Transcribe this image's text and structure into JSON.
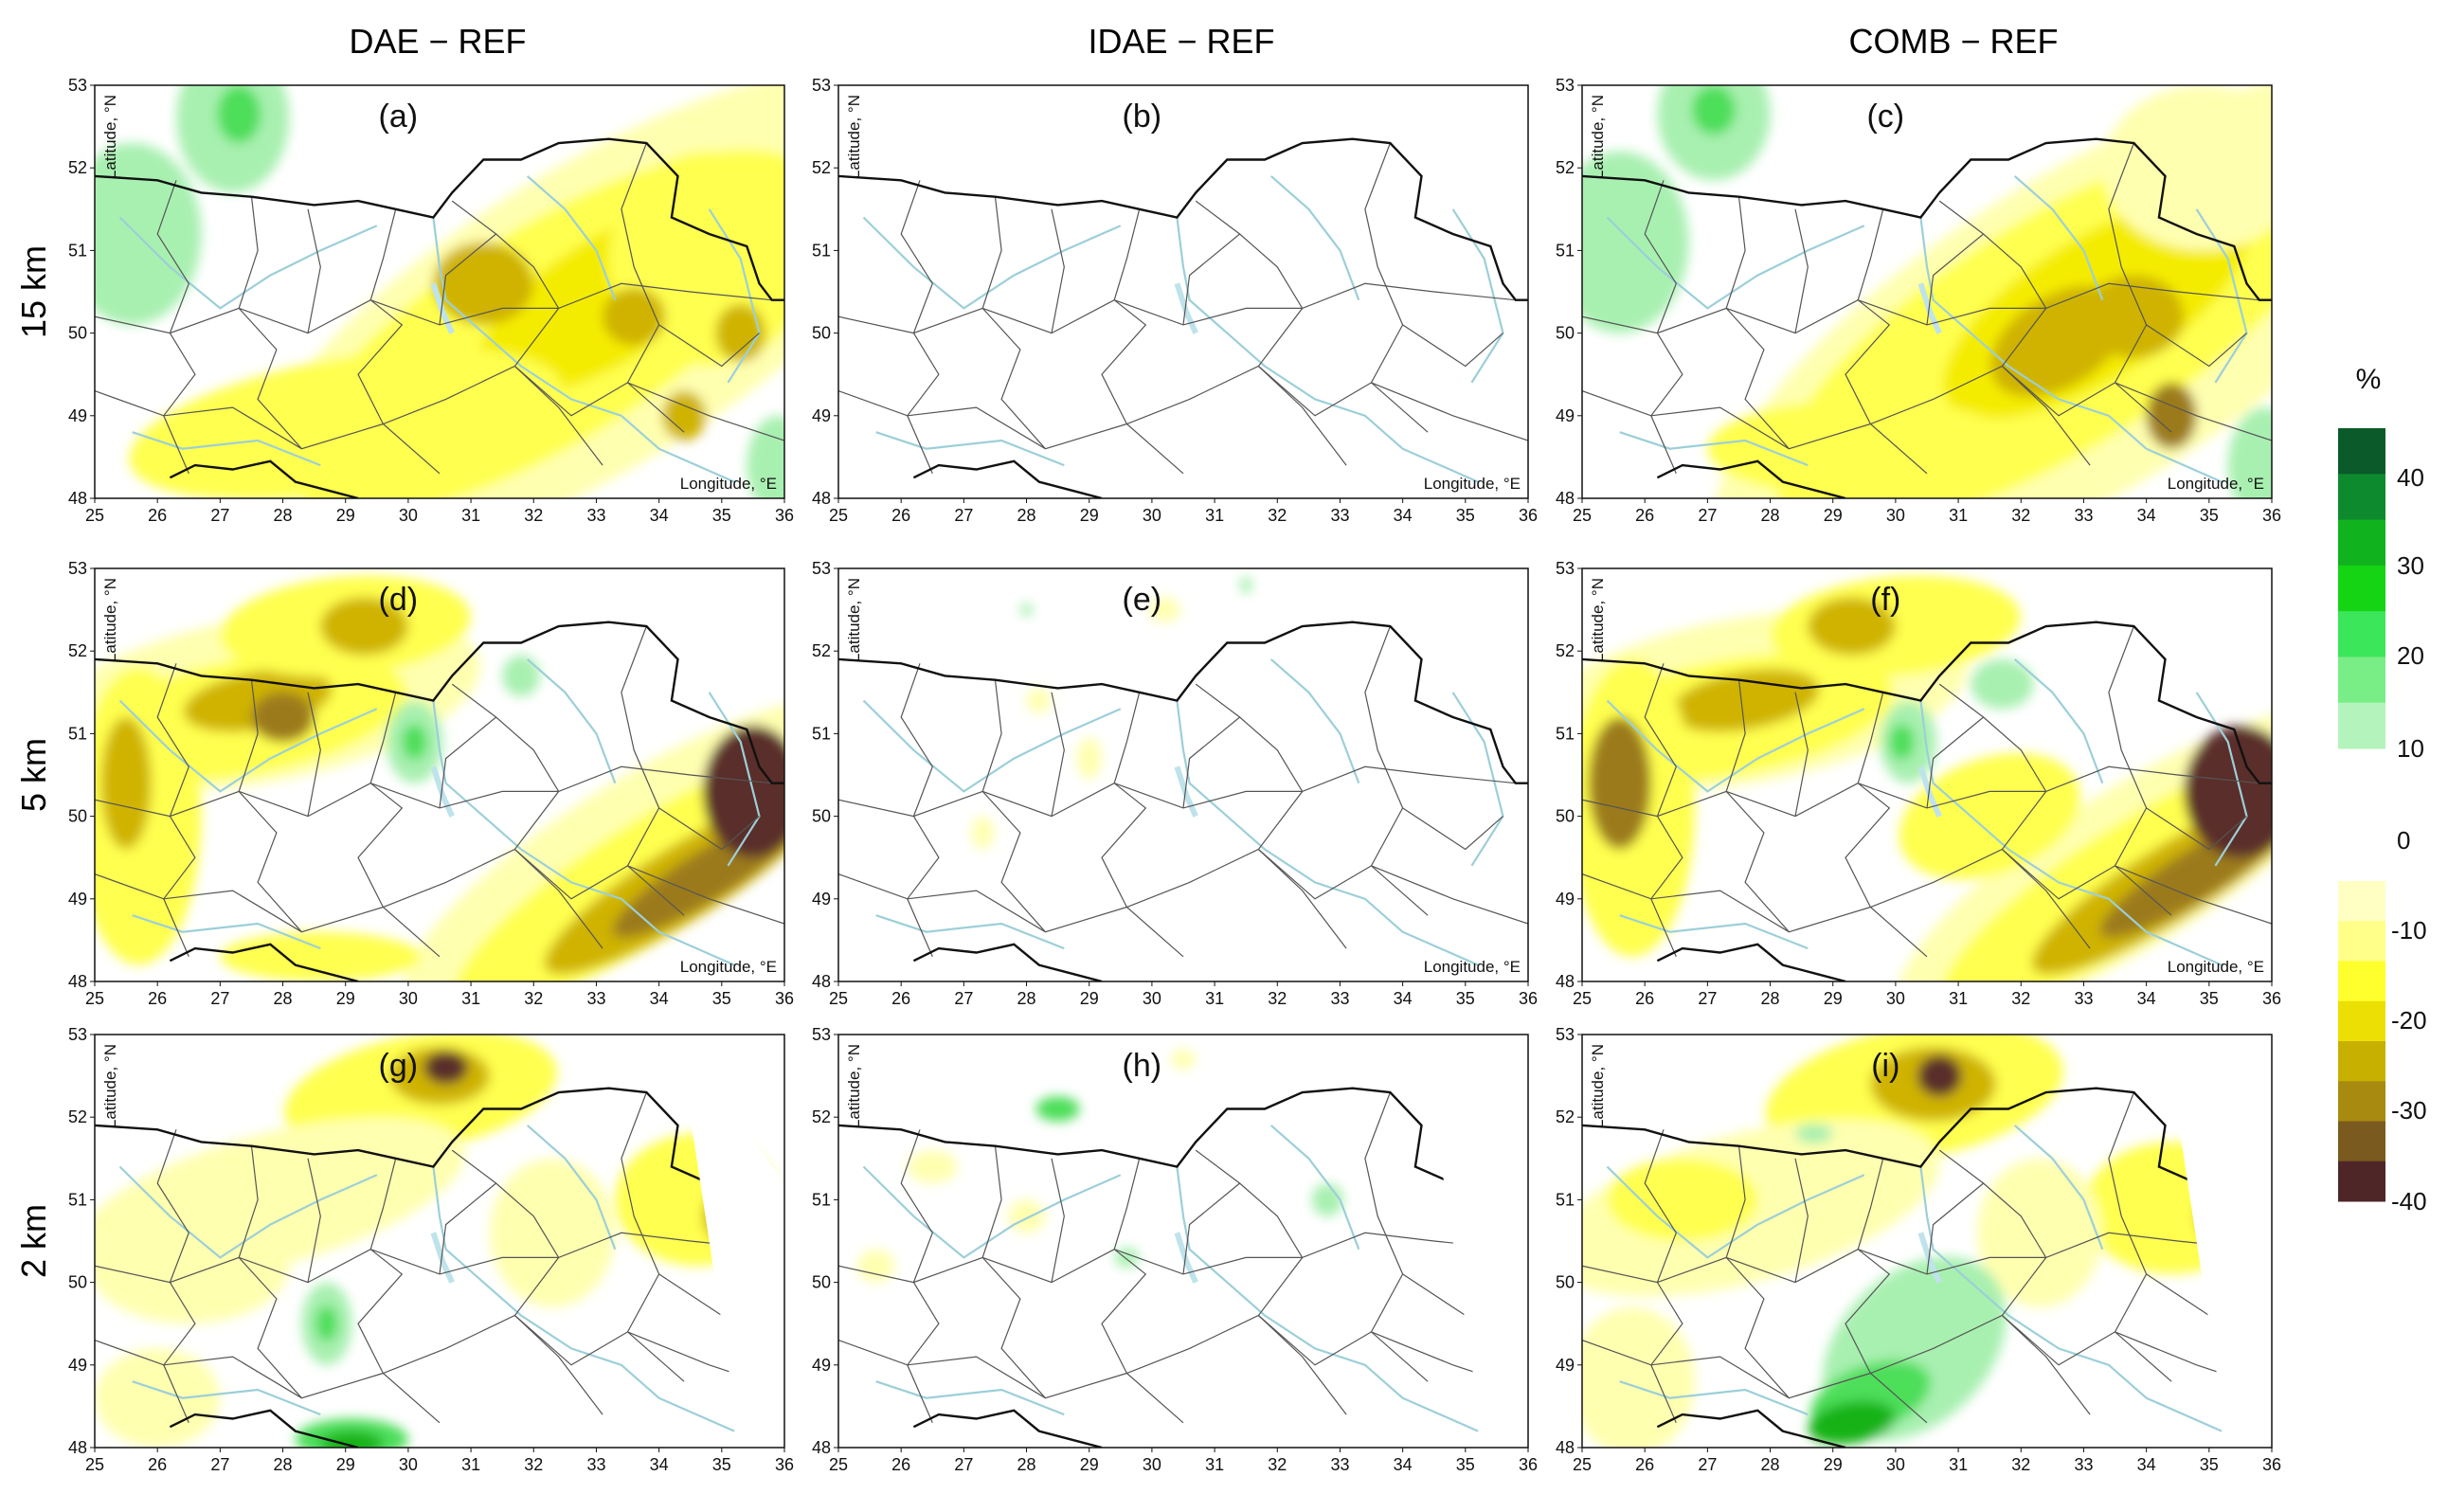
{
  "columns": [
    "DAE − REF",
    "IDAE − REF",
    "COMB − REF"
  ],
  "rows": [
    "15 km",
    "5 km",
    "2 km"
  ],
  "panels": [
    "(a)",
    "(b)",
    "(c)",
    "(d)",
    "(e)",
    "(f)",
    "(g)",
    "(h)",
    "(i)"
  ],
  "axes": {
    "lon_ticks": [
      "25",
      "26",
      "27",
      "28",
      "29",
      "30",
      "31",
      "32",
      "33",
      "34",
      "35",
      "36"
    ],
    "lat_ticks": [
      "48",
      "49",
      "50",
      "51",
      "52",
      "53"
    ],
    "lon_label": "Longitude, °E",
    "lat_label": "Latitude, °N",
    "lon_range": [
      25,
      36
    ],
    "lat_range": [
      48,
      53
    ]
  },
  "colorbar": {
    "unit": "%",
    "positive_ticks": [
      "40",
      "30",
      "20",
      "10"
    ],
    "zero": "0",
    "negative_ticks": [
      "-10",
      "-20",
      "-30",
      "-40"
    ],
    "positive_colors": [
      "#0a5a2a",
      "#0e8a2e",
      "#10b21e",
      "#14d414",
      "#3ce65a",
      "#7aee86",
      "#b4f4bc"
    ],
    "negative_colors": [
      "#ffffc4",
      "#ffff8a",
      "#ffff2e",
      "#ecdf04",
      "#c8b000",
      "#a88a10",
      "#7a5a1e",
      "#4e2628"
    ]
  },
  "shading_colors": {
    "yellow_light": "#ffffb0",
    "yellow": "#ffff50",
    "yellow_strong": "#f4ec00",
    "olive": "#cfb300",
    "brown": "#9b7a1e",
    "dark_brown": "#5a2d2a",
    "green_light": "#a8f0b0",
    "green": "#4ede5a",
    "green_dark": "#12b212"
  }
}
